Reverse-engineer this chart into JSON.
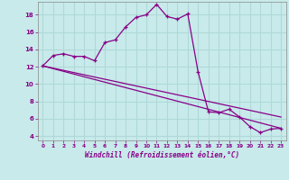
{
  "xlabel": "Windchill (Refroidissement éolien,°C)",
  "bg_color": "#c8eaea",
  "grid_color": "#b0d8d8",
  "line_color": "#880088",
  "x_data": [
    0,
    1,
    2,
    3,
    4,
    5,
    6,
    7,
    8,
    9,
    10,
    11,
    12,
    13,
    14,
    15,
    16,
    17,
    18,
    19,
    20,
    21,
    22,
    23
  ],
  "y_data": [
    12.1,
    13.3,
    13.5,
    13.2,
    13.2,
    12.7,
    14.8,
    15.1,
    16.6,
    17.7,
    18.0,
    19.2,
    17.8,
    17.5,
    18.1,
    11.4,
    6.8,
    6.7,
    7.1,
    6.2,
    5.1,
    4.4,
    4.8,
    4.9
  ],
  "line1_x": [
    0,
    23
  ],
  "line1_y": [
    12.1,
    4.9
  ],
  "line2_x": [
    0,
    23
  ],
  "line2_y": [
    12.1,
    6.2
  ],
  "xlim": [
    -0.5,
    23.5
  ],
  "ylim": [
    3.5,
    19.5
  ],
  "yticks": [
    4,
    6,
    8,
    10,
    12,
    14,
    16,
    18
  ],
  "xticks": [
    0,
    1,
    2,
    3,
    4,
    5,
    6,
    7,
    8,
    9,
    10,
    11,
    12,
    13,
    14,
    15,
    16,
    17,
    18,
    19,
    20,
    21,
    22,
    23
  ]
}
